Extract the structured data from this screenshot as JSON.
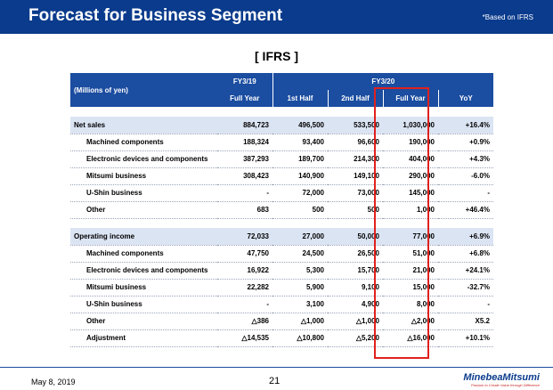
{
  "header": {
    "title": "Forecast for Business Segment",
    "note": "*Based on IFRS",
    "bg_color": "#0a3b8c"
  },
  "subtitle": "[ IFRS ]",
  "table": {
    "unit_label": "(Millions of yen)",
    "fy19_label": "FY3/19",
    "fy20_label": "FY3/20",
    "columns": [
      "Full Year",
      "1st Half",
      "2nd Half",
      "Full Year",
      "YoY"
    ],
    "sales_rows": [
      {
        "label": "Net sales",
        "v": [
          "884,723",
          "496,500",
          "533,500",
          "1,030,000",
          "+16.4%"
        ]
      },
      {
        "label": "Machined components",
        "v": [
          "188,324",
          "93,400",
          "96,600",
          "190,000",
          "+0.9%"
        ]
      },
      {
        "label": "Electronic devices and components",
        "v": [
          "387,293",
          "189,700",
          "214,300",
          "404,000",
          "+4.3%"
        ]
      },
      {
        "label": "Mitsumi business",
        "v": [
          "308,423",
          "140,900",
          "149,100",
          "290,000",
          "-6.0%"
        ]
      },
      {
        "label": "U-Shin business",
        "v": [
          "-",
          "72,000",
          "73,000",
          "145,000",
          "-"
        ]
      },
      {
        "label": "Other",
        "v": [
          "683",
          "500",
          "500",
          "1,000",
          "+46.4%"
        ]
      }
    ],
    "income_rows": [
      {
        "label": "Operating income",
        "v": [
          "72,033",
          "27,000",
          "50,000",
          "77,000",
          "+6.9%"
        ]
      },
      {
        "label": "Machined components",
        "v": [
          "47,750",
          "24,500",
          "26,500",
          "51,000",
          "+6.8%"
        ]
      },
      {
        "label": "Electronic devices and components",
        "v": [
          "16,922",
          "5,300",
          "15,700",
          "21,000",
          "+24.1%"
        ]
      },
      {
        "label": "Mitsumi business",
        "v": [
          "22,282",
          "5,900",
          "9,100",
          "15,000",
          "-32.7%"
        ]
      },
      {
        "label": "U-Shin business",
        "v": [
          "-",
          "3,100",
          "4,900",
          "8,000",
          "-"
        ]
      },
      {
        "label": "Other",
        "v": [
          "△386",
          "△1,000",
          "△1,000",
          "△2,000",
          "X5.2"
        ]
      },
      {
        "label": "Adjustment",
        "v": [
          "△14,535",
          "△10,800",
          "△5,200",
          "△16,000",
          "+10.1%"
        ]
      }
    ],
    "highlight_color": "#e0211d"
  },
  "footer": {
    "date": "May 8, 2019",
    "page": "21",
    "logo": "MinebeaMitsumi",
    "tagline": "Passion to Create Value through Difference"
  }
}
